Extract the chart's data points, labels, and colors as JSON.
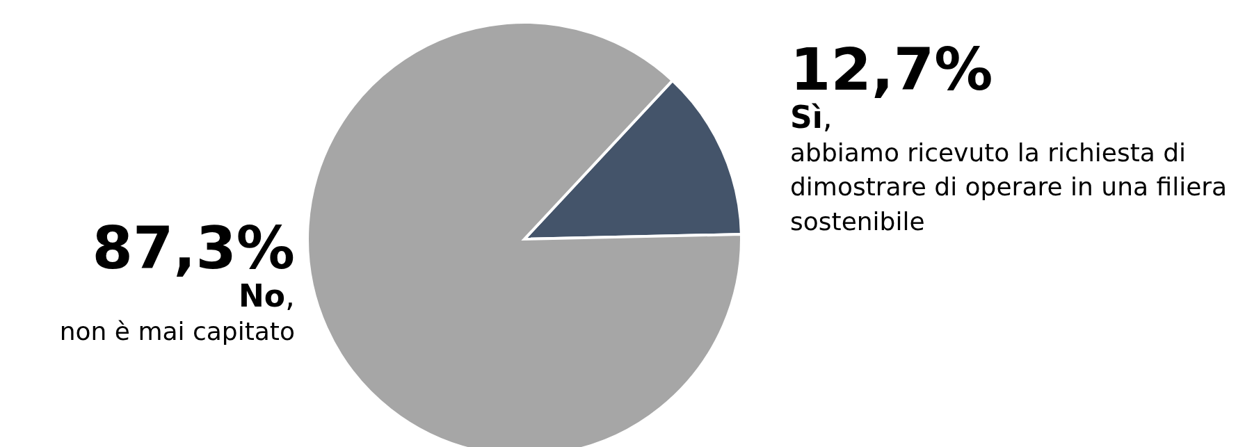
{
  "chart_data": {
    "type": "pie",
    "categories": [
      "Sì, abbiamo ricevuto la richiesta di dimostrare di operare in una filiera sostenibile",
      "No, non è mai capitato"
    ],
    "values": [
      12.7,
      87.3
    ],
    "value_labels": [
      "12,7%",
      "87,3%"
    ],
    "colors": [
      "#44546a",
      "#a6a6a6"
    ],
    "legend": false
  }
}
